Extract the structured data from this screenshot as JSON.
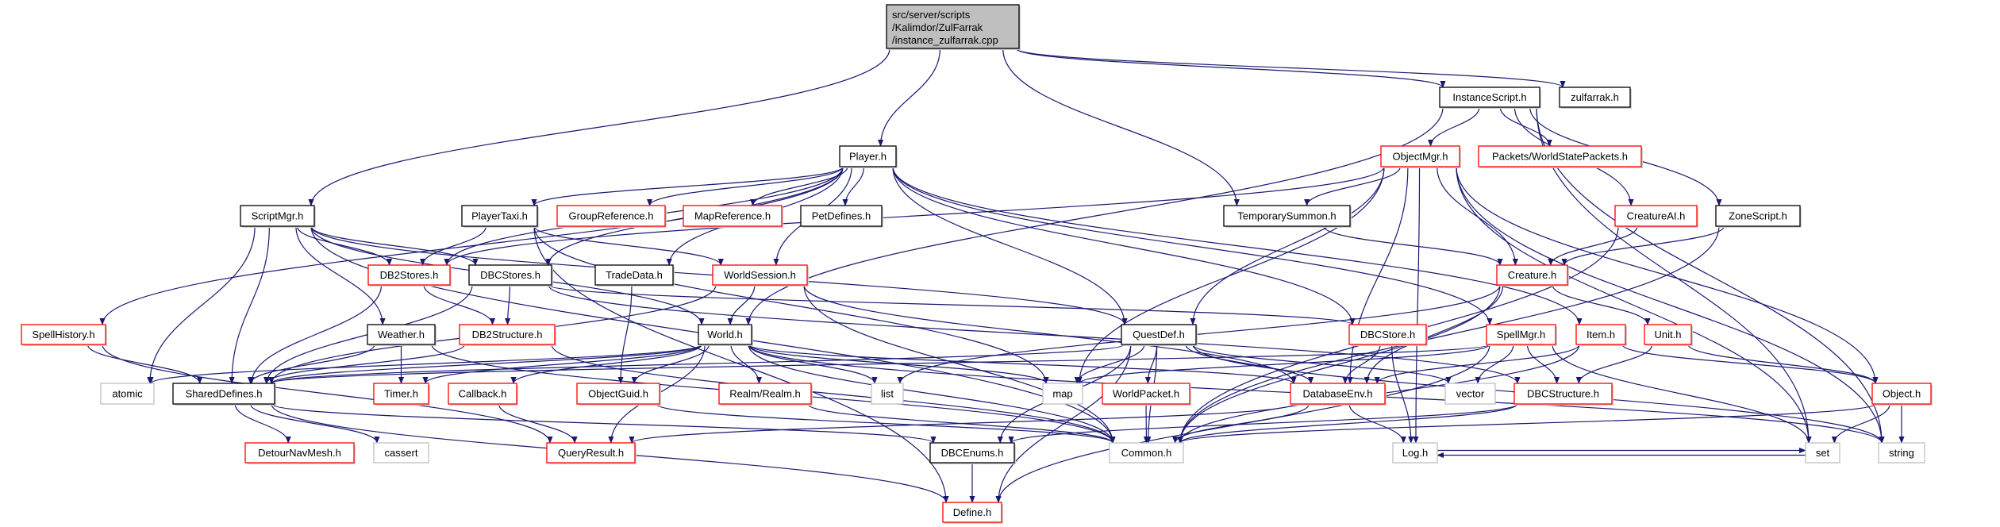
{
  "graph": {
    "type": "include-dependency-graph",
    "colors": {
      "edge": "#191970",
      "root_fill": "#bfbfbf",
      "documented_border": "#000000",
      "red_border": "#ff0000",
      "external_border": "#bfbfbf"
    },
    "nodes": [
      {
        "id": "root",
        "label": "src/server/scripts\n/Kalimdor/ZulFarrak\n/instance_zulfarrak.cpp",
        "kind": "root"
      },
      {
        "id": "Player",
        "label": "Player.h",
        "kind": "documented"
      },
      {
        "id": "ScriptMgr",
        "label": "ScriptMgr.h",
        "kind": "documented"
      },
      {
        "id": "PlayerTaxi",
        "label": "PlayerTaxi.h",
        "kind": "documented"
      },
      {
        "id": "GroupReference",
        "label": "GroupReference.h",
        "kind": "red"
      },
      {
        "id": "MapReference",
        "label": "MapReference.h",
        "kind": "red"
      },
      {
        "id": "PetDefines",
        "label": "PetDefines.h",
        "kind": "documented"
      },
      {
        "id": "InstanceScript",
        "label": "InstanceScript.h",
        "kind": "documented"
      },
      {
        "id": "zulfarrak",
        "label": "zulfarrak.h",
        "kind": "documented"
      },
      {
        "id": "ObjectMgr",
        "label": "ObjectMgr.h",
        "kind": "red"
      },
      {
        "id": "WorldStatePackets",
        "label": "Packets/WorldStatePackets.h",
        "kind": "red"
      },
      {
        "id": "TemporarySummon",
        "label": "TemporarySummon.h",
        "kind": "documented"
      },
      {
        "id": "CreatureAI",
        "label": "CreatureAI.h",
        "kind": "red"
      },
      {
        "id": "ZoneScript",
        "label": "ZoneScript.h",
        "kind": "documented"
      },
      {
        "id": "DB2Stores",
        "label": "DB2Stores.h",
        "kind": "red"
      },
      {
        "id": "DBCStores",
        "label": "DBCStores.h",
        "kind": "documented"
      },
      {
        "id": "TradeData",
        "label": "TradeData.h",
        "kind": "documented"
      },
      {
        "id": "WorldSession",
        "label": "WorldSession.h",
        "kind": "red"
      },
      {
        "id": "Creature",
        "label": "Creature.h",
        "kind": "red"
      },
      {
        "id": "SpellHistory",
        "label": "SpellHistory.h",
        "kind": "red"
      },
      {
        "id": "Weather",
        "label": "Weather.h",
        "kind": "documented"
      },
      {
        "id": "DB2Structure",
        "label": "DB2Structure.h",
        "kind": "red"
      },
      {
        "id": "World",
        "label": "World.h",
        "kind": "documented"
      },
      {
        "id": "QuestDef",
        "label": "QuestDef.h",
        "kind": "documented"
      },
      {
        "id": "DBCStore",
        "label": "DBCStore.h",
        "kind": "red"
      },
      {
        "id": "SpellMgr",
        "label": "SpellMgr.h",
        "kind": "red"
      },
      {
        "id": "Item",
        "label": "Item.h",
        "kind": "red"
      },
      {
        "id": "Unit",
        "label": "Unit.h",
        "kind": "red"
      },
      {
        "id": "atomic",
        "label": "atomic",
        "kind": "external"
      },
      {
        "id": "SharedDefines",
        "label": "SharedDefines.h",
        "kind": "documented"
      },
      {
        "id": "Timer",
        "label": "Timer.h",
        "kind": "red"
      },
      {
        "id": "Callback",
        "label": "Callback.h",
        "kind": "red"
      },
      {
        "id": "ObjectGuid",
        "label": "ObjectGuid.h",
        "kind": "red"
      },
      {
        "id": "Realm",
        "label": "Realm/Realm.h",
        "kind": "red"
      },
      {
        "id": "list",
        "label": "list",
        "kind": "external"
      },
      {
        "id": "map",
        "label": "map",
        "kind": "external"
      },
      {
        "id": "WorldPacket",
        "label": "WorldPacket.h",
        "kind": "red"
      },
      {
        "id": "DatabaseEnv",
        "label": "DatabaseEnv.h",
        "kind": "red"
      },
      {
        "id": "vector",
        "label": "vector",
        "kind": "external"
      },
      {
        "id": "DBCStructure",
        "label": "DBCStructure.h",
        "kind": "red"
      },
      {
        "id": "Object",
        "label": "Object.h",
        "kind": "red"
      },
      {
        "id": "DetourNavMesh",
        "label": "DetourNavMesh.h",
        "kind": "red"
      },
      {
        "id": "cassert",
        "label": "cassert",
        "kind": "external"
      },
      {
        "id": "QueryResult",
        "label": "QueryResult.h",
        "kind": "red"
      },
      {
        "id": "DBCEnums",
        "label": "DBCEnums.h",
        "kind": "documented"
      },
      {
        "id": "Common",
        "label": "Common.h",
        "kind": "external"
      },
      {
        "id": "Log",
        "label": "Log.h",
        "kind": "external"
      },
      {
        "id": "set",
        "label": "set",
        "kind": "external"
      },
      {
        "id": "string",
        "label": "string",
        "kind": "external"
      },
      {
        "id": "Define",
        "label": "Define.h",
        "kind": "red"
      }
    ],
    "edges": [
      [
        "root",
        "ScriptMgr"
      ],
      [
        "root",
        "Player"
      ],
      [
        "root",
        "TemporarySummon"
      ],
      [
        "root",
        "InstanceScript"
      ],
      [
        "root",
        "zulfarrak"
      ],
      [
        "InstanceScript",
        "World"
      ],
      [
        "InstanceScript",
        "ObjectMgr"
      ],
      [
        "InstanceScript",
        "WorldStatePackets"
      ],
      [
        "InstanceScript",
        "CreatureAI"
      ],
      [
        "InstanceScript",
        "ZoneScript"
      ],
      [
        "InstanceScript",
        "set"
      ],
      [
        "InstanceScript",
        "string"
      ],
      [
        "Player",
        "DB2Stores"
      ],
      [
        "Player",
        "DBCStores"
      ],
      [
        "Player",
        "PlayerTaxi"
      ],
      [
        "Player",
        "GroupReference"
      ],
      [
        "Player",
        "MapReference"
      ],
      [
        "Player",
        "PetDefines"
      ],
      [
        "Player",
        "SpellHistory"
      ],
      [
        "Player",
        "WorldSession"
      ],
      [
        "Player",
        "QuestDef"
      ],
      [
        "Player",
        "TradeData"
      ],
      [
        "Player",
        "Item"
      ],
      [
        "Player",
        "SpellMgr"
      ],
      [
        "Player",
        "DBCStore"
      ],
      [
        "ObjectMgr",
        "DB2Stores"
      ],
      [
        "ObjectMgr",
        "TemporarySummon"
      ],
      [
        "ObjectMgr",
        "Creature"
      ],
      [
        "ObjectMgr",
        "QuestDef"
      ],
      [
        "ObjectMgr",
        "DatabaseEnv"
      ],
      [
        "ObjectMgr",
        "map"
      ],
      [
        "ObjectMgr",
        "Object"
      ],
      [
        "ObjectMgr",
        "set"
      ],
      [
        "ObjectMgr",
        "string"
      ],
      [
        "ObjectMgr",
        "Log"
      ],
      [
        "ScriptMgr",
        "DBCStores"
      ],
      [
        "ScriptMgr",
        "DB2Stores"
      ],
      [
        "ScriptMgr",
        "Weather"
      ],
      [
        "ScriptMgr",
        "World"
      ],
      [
        "ScriptMgr",
        "SharedDefines"
      ],
      [
        "ScriptMgr",
        "atomic"
      ],
      [
        "ScriptMgr",
        "QuestDef"
      ],
      [
        "ScriptMgr",
        "Common"
      ],
      [
        "PlayerTaxi",
        "DB2Stores"
      ],
      [
        "PlayerTaxi",
        "WorldSession"
      ],
      [
        "PlayerTaxi",
        "map"
      ],
      [
        "PlayerTaxi",
        "Define"
      ],
      [
        "TemporarySummon",
        "Creature"
      ],
      [
        "CreatureAI",
        "Creature"
      ],
      [
        "CreatureAI",
        "Common"
      ],
      [
        "ZoneScript",
        "Creature"
      ],
      [
        "ZoneScript",
        "Common"
      ],
      [
        "Creature",
        "Unit"
      ],
      [
        "Creature",
        "DatabaseEnv"
      ],
      [
        "Creature",
        "list"
      ],
      [
        "Creature",
        "Common"
      ],
      [
        "DB2Stores",
        "DB2Structure"
      ],
      [
        "DB2Stores",
        "SharedDefines"
      ],
      [
        "DBCStores",
        "DB2Structure"
      ],
      [
        "DBCStores",
        "SharedDefines"
      ],
      [
        "DBCStores",
        "DBCStore"
      ],
      [
        "DBCStores",
        "DBCStructure"
      ],
      [
        "TradeData",
        "ObjectGuid"
      ],
      [
        "WorldSession",
        "World"
      ],
      [
        "WorldSession",
        "SharedDefines"
      ],
      [
        "WorldSession",
        "DatabaseEnv"
      ],
      [
        "WorldSession",
        "Common"
      ],
      [
        "SpellHistory",
        "SharedDefines"
      ],
      [
        "SpellHistory",
        "QueryResult"
      ],
      [
        "Weather",
        "SharedDefines"
      ],
      [
        "Weather",
        "Timer"
      ],
      [
        "Weather",
        "Common"
      ],
      [
        "DB2Structure",
        "SharedDefines"
      ],
      [
        "DB2Structure",
        "Common"
      ],
      [
        "World",
        "SharedDefines"
      ],
      [
        "World",
        "atomic"
      ],
      [
        "World",
        "Timer"
      ],
      [
        "World",
        "Callback"
      ],
      [
        "World",
        "ObjectGuid"
      ],
      [
        "World",
        "QueryResult"
      ],
      [
        "World",
        "Realm"
      ],
      [
        "World",
        "list"
      ],
      [
        "World",
        "map"
      ],
      [
        "World",
        "Common"
      ],
      [
        "World",
        "DatabaseEnv"
      ],
      [
        "World",
        "string"
      ],
      [
        "SharedDefines",
        "DetourNavMesh"
      ],
      [
        "SharedDefines",
        "cassert"
      ],
      [
        "SharedDefines",
        "Define"
      ],
      [
        "SharedDefines",
        "DBCEnums"
      ],
      [
        "Callback",
        "QueryResult"
      ],
      [
        "ObjectGuid",
        "Common"
      ],
      [
        "Realm",
        "Common"
      ],
      [
        "QuestDef",
        "map"
      ],
      [
        "QuestDef",
        "WorldPacket"
      ],
      [
        "QuestDef",
        "DatabaseEnv"
      ],
      [
        "QuestDef",
        "vector"
      ],
      [
        "QuestDef",
        "DBCEnums"
      ],
      [
        "QuestDef",
        "Define"
      ],
      [
        "QuestDef",
        "Common"
      ],
      [
        "QuestDef",
        "SharedDefines"
      ],
      [
        "QuestDef",
        "string"
      ],
      [
        "DBCStore",
        "DatabaseEnv"
      ],
      [
        "DBCStore",
        "Log"
      ],
      [
        "SpellMgr",
        "map"
      ],
      [
        "SpellMgr",
        "vector"
      ],
      [
        "SpellMgr",
        "DBCStructure"
      ],
      [
        "SpellMgr",
        "SharedDefines"
      ],
      [
        "SpellMgr",
        "set"
      ],
      [
        "SpellMgr",
        "Define"
      ],
      [
        "Item",
        "DatabaseEnv"
      ],
      [
        "Item",
        "Object"
      ],
      [
        "Item",
        "Common"
      ],
      [
        "Unit",
        "DBCStructure"
      ],
      [
        "Unit",
        "Object"
      ],
      [
        "WorldPacket",
        "Common"
      ],
      [
        "DatabaseEnv",
        "Common"
      ],
      [
        "DatabaseEnv",
        "Log"
      ],
      [
        "DatabaseEnv",
        "QueryResult"
      ],
      [
        "DBCStructure",
        "Common"
      ],
      [
        "DBCStructure",
        "DBCEnums"
      ],
      [
        "Object",
        "Common"
      ],
      [
        "Object",
        "set"
      ],
      [
        "Object",
        "string"
      ],
      [
        "DBCEnums",
        "Define"
      ],
      [
        "Log",
        "set"
      ],
      [
        "set",
        "Log"
      ]
    ]
  }
}
